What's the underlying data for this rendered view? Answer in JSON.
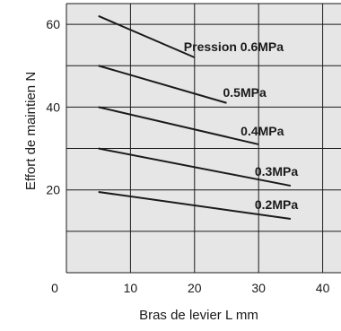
{
  "chart_data": {
    "type": "line",
    "xlabel": "Bras de levier  L mm",
    "ylabel": "Effort de maintien  N",
    "xlim": [
      0,
      43
    ],
    "ylim": [
      0,
      65
    ],
    "x_ticks": [
      "0",
      "10",
      "20",
      "30",
      "40"
    ],
    "y_ticks": [
      "20",
      "40",
      "60"
    ],
    "grid": true,
    "colors": {
      "plot_background": "#e6e6e6",
      "grid": "#1a1a1a",
      "line": "#1a1a1a"
    },
    "series": [
      {
        "name": "Pression 0.6MPa",
        "x": [
          5,
          20
        ],
        "y": [
          62,
          52
        ]
      },
      {
        "name": "0.5MPa",
        "x": [
          5,
          25
        ],
        "y": [
          50,
          41
        ]
      },
      {
        "name": "0.4MPa",
        "x": [
          5,
          30
        ],
        "y": [
          40,
          31
        ]
      },
      {
        "name": "0.3MPa",
        "x": [
          5,
          35
        ],
        "y": [
          30,
          21
        ]
      },
      {
        "name": "0.2MPa",
        "x": [
          5,
          35
        ],
        "y": [
          19.5,
          13
        ]
      }
    ]
  }
}
